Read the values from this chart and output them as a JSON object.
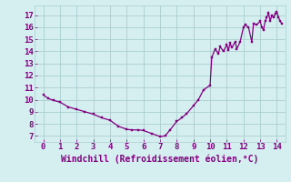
{
  "title": "",
  "xlabel": "Windchill (Refroidissement éolien,°C)",
  "ylabel": "",
  "xlim": [
    -0.5,
    14.5
  ],
  "ylim": [
    6.5,
    17.8
  ],
  "xticks": [
    0,
    1,
    2,
    3,
    4,
    5,
    6,
    7,
    8,
    9,
    10,
    11,
    12,
    13,
    14
  ],
  "yticks": [
    7,
    8,
    9,
    10,
    11,
    12,
    13,
    14,
    15,
    16,
    17
  ],
  "line_color": "#800080",
  "marker_color": "#800080",
  "background_color": "#d5eef0",
  "grid_color": "#aacece",
  "x": [
    0.0,
    0.3,
    0.6,
    1.0,
    1.5,
    2.0,
    2.5,
    3.0,
    3.5,
    4.0,
    4.5,
    5.0,
    5.3,
    5.7,
    6.0,
    6.5,
    7.0,
    7.3,
    7.6,
    8.0,
    8.3,
    8.6,
    9.0,
    9.3,
    9.6,
    10.0,
    10.1,
    10.3,
    10.5,
    10.6,
    10.8,
    11.0,
    11.1,
    11.2,
    11.3,
    11.5,
    11.6,
    11.8,
    12.0,
    12.1,
    12.3,
    12.5,
    12.6,
    12.8,
    13.0,
    13.1,
    13.2,
    13.3,
    13.4,
    13.5,
    13.6,
    13.7,
    13.8,
    13.9,
    14.0,
    14.1,
    14.2,
    14.3
  ],
  "y": [
    10.4,
    10.1,
    9.95,
    9.8,
    9.4,
    9.2,
    9.0,
    8.8,
    8.5,
    8.3,
    7.8,
    7.55,
    7.5,
    7.5,
    7.45,
    7.2,
    6.95,
    7.0,
    7.5,
    8.2,
    8.5,
    8.85,
    9.5,
    10.0,
    10.8,
    11.2,
    13.5,
    14.2,
    13.8,
    14.4,
    14.0,
    14.55,
    14.1,
    14.7,
    14.3,
    14.8,
    14.2,
    14.8,
    16.0,
    16.2,
    16.0,
    14.8,
    16.3,
    16.2,
    16.5,
    16.0,
    15.8,
    16.5,
    16.8,
    17.2,
    16.5,
    17.0,
    16.8,
    17.1,
    17.3,
    16.8,
    16.5,
    16.3
  ],
  "tick_fontsize": 6.5,
  "label_fontsize": 7,
  "linewidth": 0.9
}
